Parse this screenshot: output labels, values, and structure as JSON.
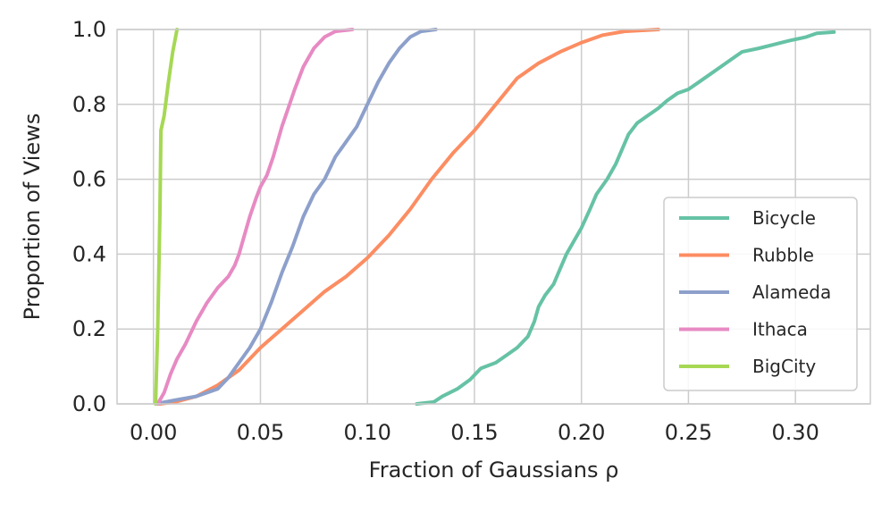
{
  "chart_data": {
    "type": "line",
    "title": "",
    "xlabel": "Fraction of Gaussians ρ",
    "ylabel": "Proportion of Views",
    "xlim": [
      -0.017,
      0.335
    ],
    "ylim": [
      0.0,
      1.0
    ],
    "xticks": [
      0.0,
      0.05,
      0.1,
      0.15,
      0.2,
      0.25,
      0.3
    ],
    "xtick_labels": [
      "0.00",
      "0.05",
      "0.10",
      "0.15",
      "0.20",
      "0.25",
      "0.30"
    ],
    "yticks": [
      0.0,
      0.2,
      0.4,
      0.6,
      0.8,
      1.0
    ],
    "ytick_labels": [
      "0.0",
      "0.2",
      "0.4",
      "0.6",
      "0.8",
      "1.0"
    ],
    "grid": true,
    "legend_position": "lower-right",
    "series": [
      {
        "name": "Bicycle",
        "color": "#66c2a5",
        "points": [
          [
            0.123,
            0.0
          ],
          [
            0.131,
            0.005
          ],
          [
            0.135,
            0.02
          ],
          [
            0.142,
            0.04
          ],
          [
            0.148,
            0.065
          ],
          [
            0.153,
            0.095
          ],
          [
            0.16,
            0.11
          ],
          [
            0.165,
            0.13
          ],
          [
            0.17,
            0.15
          ],
          [
            0.175,
            0.18
          ],
          [
            0.178,
            0.22
          ],
          [
            0.18,
            0.26
          ],
          [
            0.183,
            0.29
          ],
          [
            0.187,
            0.32
          ],
          [
            0.19,
            0.36
          ],
          [
            0.193,
            0.4
          ],
          [
            0.197,
            0.44
          ],
          [
            0.2,
            0.47
          ],
          [
            0.204,
            0.52
          ],
          [
            0.207,
            0.56
          ],
          [
            0.212,
            0.6
          ],
          [
            0.216,
            0.64
          ],
          [
            0.219,
            0.68
          ],
          [
            0.222,
            0.72
          ],
          [
            0.226,
            0.75
          ],
          [
            0.231,
            0.77
          ],
          [
            0.236,
            0.79
          ],
          [
            0.24,
            0.81
          ],
          [
            0.245,
            0.83
          ],
          [
            0.25,
            0.84
          ],
          [
            0.255,
            0.86
          ],
          [
            0.26,
            0.88
          ],
          [
            0.265,
            0.9
          ],
          [
            0.27,
            0.92
          ],
          [
            0.275,
            0.94
          ],
          [
            0.283,
            0.95
          ],
          [
            0.29,
            0.96
          ],
          [
            0.297,
            0.97
          ],
          [
            0.305,
            0.98
          ],
          [
            0.31,
            0.99
          ],
          [
            0.318,
            0.993
          ]
        ]
      },
      {
        "name": "Rubble",
        "color": "#fc8d62",
        "points": [
          [
            0.003,
            0.0
          ],
          [
            0.01,
            0.005
          ],
          [
            0.02,
            0.02
          ],
          [
            0.03,
            0.05
          ],
          [
            0.04,
            0.09
          ],
          [
            0.05,
            0.15
          ],
          [
            0.06,
            0.2
          ],
          [
            0.07,
            0.25
          ],
          [
            0.08,
            0.3
          ],
          [
            0.09,
            0.34
          ],
          [
            0.1,
            0.39
          ],
          [
            0.11,
            0.45
          ],
          [
            0.12,
            0.52
          ],
          [
            0.13,
            0.6
          ],
          [
            0.14,
            0.67
          ],
          [
            0.15,
            0.73
          ],
          [
            0.16,
            0.8
          ],
          [
            0.17,
            0.87
          ],
          [
            0.18,
            0.91
          ],
          [
            0.19,
            0.94
          ],
          [
            0.2,
            0.965
          ],
          [
            0.21,
            0.985
          ],
          [
            0.22,
            0.995
          ],
          [
            0.236,
            1.0
          ]
        ]
      },
      {
        "name": "Alameda",
        "color": "#8da0cb",
        "points": [
          [
            0.001,
            0.0
          ],
          [
            0.01,
            0.01
          ],
          [
            0.02,
            0.02
          ],
          [
            0.03,
            0.04
          ],
          [
            0.035,
            0.07
          ],
          [
            0.04,
            0.11
          ],
          [
            0.045,
            0.15
          ],
          [
            0.05,
            0.2
          ],
          [
            0.055,
            0.27
          ],
          [
            0.06,
            0.35
          ],
          [
            0.065,
            0.42
          ],
          [
            0.07,
            0.5
          ],
          [
            0.075,
            0.56
          ],
          [
            0.08,
            0.6
          ],
          [
            0.085,
            0.66
          ],
          [
            0.09,
            0.7
          ],
          [
            0.095,
            0.74
          ],
          [
            0.1,
            0.8
          ],
          [
            0.105,
            0.86
          ],
          [
            0.11,
            0.91
          ],
          [
            0.115,
            0.95
          ],
          [
            0.12,
            0.98
          ],
          [
            0.125,
            0.995
          ],
          [
            0.132,
            1.0
          ]
        ]
      },
      {
        "name": "Ithaca",
        "color": "#e78ac3",
        "points": [
          [
            0.002,
            0.0
          ],
          [
            0.005,
            0.03
          ],
          [
            0.008,
            0.08
          ],
          [
            0.011,
            0.12
          ],
          [
            0.015,
            0.16
          ],
          [
            0.02,
            0.22
          ],
          [
            0.025,
            0.27
          ],
          [
            0.03,
            0.31
          ],
          [
            0.035,
            0.34
          ],
          [
            0.038,
            0.37
          ],
          [
            0.04,
            0.4
          ],
          [
            0.042,
            0.44
          ],
          [
            0.045,
            0.5
          ],
          [
            0.048,
            0.55
          ],
          [
            0.05,
            0.58
          ],
          [
            0.053,
            0.61
          ],
          [
            0.056,
            0.66
          ],
          [
            0.06,
            0.74
          ],
          [
            0.063,
            0.79
          ],
          [
            0.066,
            0.84
          ],
          [
            0.07,
            0.9
          ],
          [
            0.075,
            0.95
          ],
          [
            0.08,
            0.98
          ],
          [
            0.085,
            0.995
          ],
          [
            0.093,
            1.0
          ]
        ]
      },
      {
        "name": "BigCity",
        "color": "#a6d854",
        "points": [
          [
            0.001,
            0.0
          ],
          [
            0.002,
            0.2
          ],
          [
            0.003,
            0.5
          ],
          [
            0.0035,
            0.73
          ],
          [
            0.005,
            0.77
          ],
          [
            0.007,
            0.86
          ],
          [
            0.009,
            0.94
          ],
          [
            0.011,
            1.0
          ]
        ]
      }
    ]
  }
}
